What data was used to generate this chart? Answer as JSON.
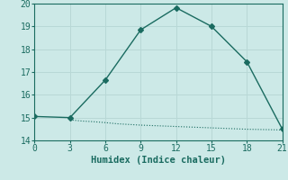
{
  "xlabel": "Humidex (Indice chaleur)",
  "bg_color": "#cce9e7",
  "grid_color": "#b8d8d6",
  "line_color": "#1a6b60",
  "line1_x": [
    0,
    3,
    6,
    9,
    12,
    15,
    18,
    21
  ],
  "line1_y": [
    15.05,
    15.0,
    16.65,
    18.85,
    19.82,
    19.0,
    17.45,
    14.5
  ],
  "line2_x": [
    3,
    4,
    5,
    6,
    7,
    8,
    9,
    10,
    11,
    12,
    13,
    14,
    15,
    16,
    17,
    18,
    19,
    20,
    21
  ],
  "line2_y": [
    14.9,
    14.85,
    14.82,
    14.78,
    14.73,
    14.7,
    14.67,
    14.65,
    14.63,
    14.61,
    14.59,
    14.57,
    14.55,
    14.53,
    14.51,
    14.49,
    14.48,
    14.47,
    14.46
  ],
  "xlim": [
    0,
    21
  ],
  "ylim": [
    14,
    20
  ],
  "xticks": [
    0,
    3,
    6,
    9,
    12,
    15,
    18,
    21
  ],
  "yticks": [
    14,
    15,
    16,
    17,
    18,
    19,
    20
  ],
  "tick_fontsize": 7,
  "xlabel_fontsize": 7.5
}
